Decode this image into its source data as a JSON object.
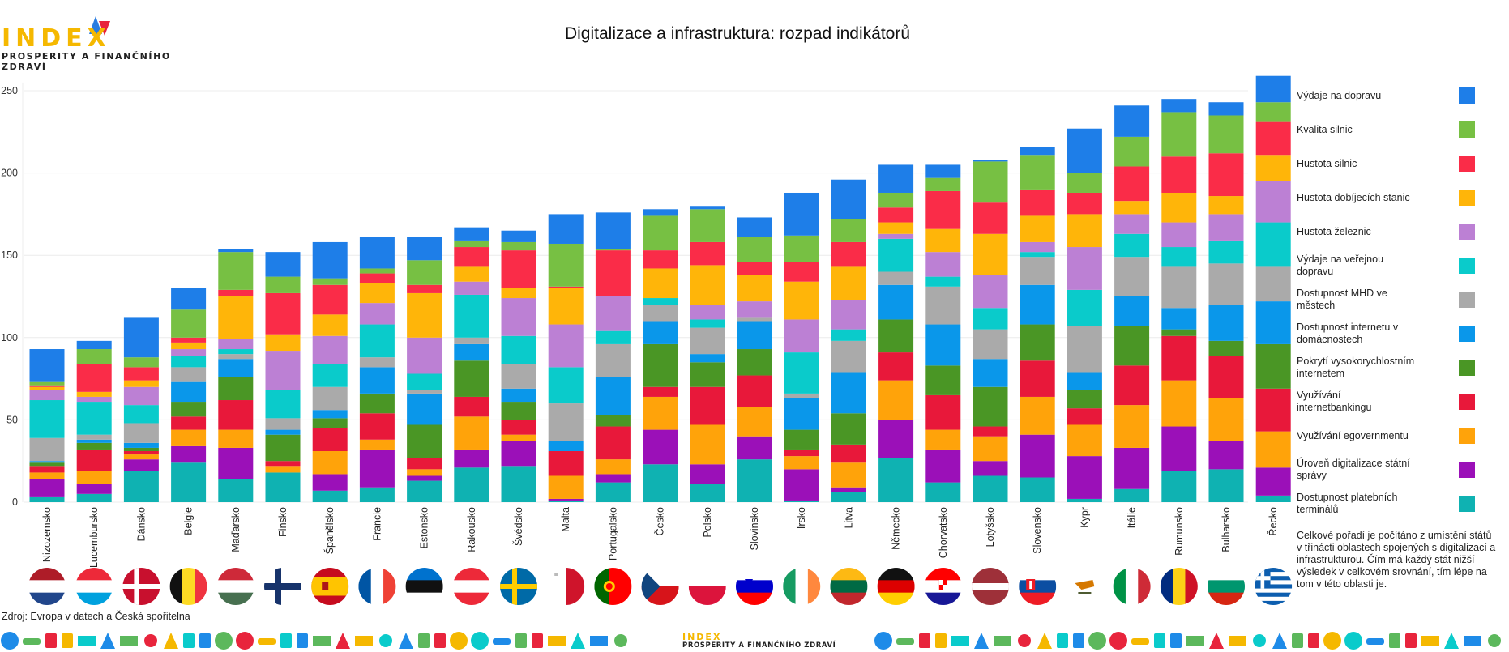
{
  "brand": {
    "logo_word": "INDEX",
    "logo_subtitle": "PROSPERITY A FINANČNÍHO ZDRAVÍ",
    "colors": {
      "yellow": "#f5b800",
      "red": "#e8243c",
      "blue": "#2a7de1"
    }
  },
  "chart_data": {
    "type": "bar",
    "stacked": true,
    "title": "Digitalizace a infrastruktura: rozpad indikátorů",
    "ylim": [
      0,
      260
    ],
    "yticks": [
      "0",
      "50",
      "100",
      "150",
      "200",
      "250"
    ],
    "grid": true,
    "legend_position": "right",
    "categories": [
      "Nizozemsko",
      "Lucembursko",
      "Dánsko",
      "Belgie",
      "Maďarsko",
      "Finsko",
      "Španělsko",
      "Francie",
      "Estonsko",
      "Rakousko",
      "Švédsko",
      "Malta",
      "Portugalsko",
      "Česko",
      "Polsko",
      "Slovinsko",
      "Irsko",
      "Litva",
      "Německo",
      "Chorvatsko",
      "Lotyšsko",
      "Slovensko",
      "Kypr",
      "Itálie",
      "Rumunsko",
      "Bulharsko",
      "Řecko"
    ],
    "series": [
      {
        "name": "Dostupnost platebních terminálů",
        "color": "#0fb2b2",
        "values": [
          3,
          5,
          19,
          24,
          14,
          18,
          7,
          9,
          13,
          21,
          22,
          1,
          12,
          23,
          11,
          26,
          1,
          6,
          27,
          12,
          16,
          15,
          2,
          8,
          19,
          20,
          4
        ]
      },
      {
        "name": "Úroveň digitalizace státní správy",
        "color": "#9b10b8",
        "values": [
          11,
          6,
          7,
          10,
          19,
          0,
          10,
          23,
          3,
          11,
          15,
          1,
          5,
          21,
          12,
          14,
          19,
          3,
          23,
          20,
          9,
          26,
          26,
          25,
          27,
          17,
          17
        ]
      },
      {
        "name": "Využívání egovernmentu",
        "color": "#ffa30a",
        "values": [
          4,
          8,
          3,
          10,
          11,
          4,
          14,
          6,
          4,
          20,
          4,
          14,
          9,
          20,
          24,
          18,
          8,
          15,
          24,
          12,
          15,
          23,
          19,
          26,
          28,
          26,
          22
        ]
      },
      {
        "name": "Využívání internetbankingu",
        "color": "#e8183a",
        "values": [
          4,
          13,
          2,
          8,
          18,
          3,
          14,
          16,
          7,
          12,
          9,
          15,
          20,
          6,
          23,
          19,
          4,
          11,
          17,
          21,
          6,
          22,
          10,
          24,
          27,
          26,
          26
        ]
      },
      {
        "name": "Pokrytí vysokorychlostním internetem",
        "color": "#4a9625",
        "values": [
          2,
          4,
          2,
          9,
          14,
          16,
          6,
          12,
          20,
          22,
          11,
          0,
          7,
          26,
          15,
          16,
          12,
          19,
          20,
          18,
          24,
          22,
          11,
          24,
          4,
          9,
          27
        ]
      },
      {
        "name": "Dostupnost internetu v domácnostech",
        "color": "#0a97ea",
        "values": [
          1,
          2,
          3,
          12,
          11,
          3,
          5,
          16,
          19,
          10,
          8,
          6,
          23,
          14,
          5,
          17,
          19,
          25,
          21,
          25,
          17,
          24,
          11,
          18,
          13,
          22,
          26
        ]
      },
      {
        "name": "Dostupnost MHD ve městech",
        "color": "#aaaaaa",
        "values": [
          14,
          3,
          12,
          9,
          3,
          7,
          14,
          6,
          2,
          4,
          15,
          23,
          20,
          10,
          16,
          2,
          3,
          19,
          8,
          23,
          18,
          17,
          28,
          24,
          25,
          25,
          21
        ]
      },
      {
        "name": "Výdaje na veřejnou dopravu",
        "color": "#0acbcb",
        "values": [
          23,
          20,
          11,
          7,
          3,
          17,
          14,
          20,
          10,
          26,
          17,
          22,
          8,
          4,
          5,
          0,
          25,
          7,
          20,
          6,
          13,
          3,
          22,
          14,
          12,
          14,
          27
        ]
      },
      {
        "name": "Hustota železnic",
        "color": "#bc80d4",
        "values": [
          6,
          3,
          11,
          4,
          6,
          24,
          17,
          13,
          22,
          8,
          23,
          26,
          21,
          0,
          9,
          10,
          20,
          18,
          3,
          15,
          20,
          6,
          26,
          12,
          15,
          16,
          25
        ]
      },
      {
        "name": "Hustota dobíjecích stanic",
        "color": "#ffb509",
        "values": [
          2,
          3,
          4,
          4,
          26,
          10,
          13,
          12,
          27,
          9,
          6,
          22,
          0,
          18,
          24,
          16,
          23,
          20,
          7,
          14,
          25,
          16,
          20,
          8,
          18,
          11,
          16
        ]
      },
      {
        "name": "Hustota silnic",
        "color": "#fa2c48",
        "values": [
          1,
          17,
          8,
          3,
          4,
          25,
          18,
          6,
          5,
          12,
          23,
          1,
          28,
          11,
          14,
          8,
          12,
          15,
          9,
          23,
          19,
          16,
          13,
          21,
          22,
          26,
          20
        ]
      },
      {
        "name": "Kvalita silnic",
        "color": "#77c043",
        "values": [
          2,
          9,
          6,
          17,
          23,
          10,
          4,
          3,
          15,
          4,
          5,
          26,
          1,
          21,
          20,
          15,
          16,
          14,
          9,
          8,
          25,
          21,
          12,
          18,
          27,
          23,
          12
        ]
      },
      {
        "name": "Výdaje na dopravu",
        "color": "#1e7ee8",
        "values": [
          20,
          5,
          24,
          13,
          2,
          15,
          22,
          19,
          14,
          8,
          7,
          18,
          22,
          4,
          2,
          12,
          26,
          24,
          17,
          8,
          1,
          5,
          27,
          19,
          8,
          8,
          16
        ]
      }
    ],
    "legend_order": [
      "Výdaje na dopravu",
      "Kvalita silnic",
      "Hustota silnic",
      "Hustota dobíjecích stanic",
      "Hustota železnic",
      "Výdaje na veřejnou dopravu",
      "Dostupnost MHD ve městech",
      "Dostupnost internetu v domácnostech",
      "Pokrytí vysokorychlostním internetem",
      "Využívání internetbankingu",
      "Využívání egovernmentu",
      "Úroveň digitalizace státní správy",
      "Dostupnost platebních terminálů"
    ],
    "flag_icons": [
      "netherlands-flag",
      "luxembourg-flag",
      "denmark-flag",
      "belgium-flag",
      "hungary-flag",
      "finland-flag",
      "spain-flag",
      "france-flag",
      "estonia-flag",
      "austria-flag",
      "sweden-flag",
      "malta-flag",
      "portugal-flag",
      "czechia-flag",
      "poland-flag",
      "slovenia-flag",
      "ireland-flag",
      "lithuania-flag",
      "germany-flag",
      "croatia-flag",
      "latvia-flag",
      "slovakia-flag",
      "cyprus-flag",
      "italy-flag",
      "romania-flag",
      "bulgaria-flag",
      "greece-flag"
    ]
  },
  "note": "Celkové pořadí je počítáno z umístění států v třinácti oblastech spojených s digitalizací a infrastrukturou. Čím má každý stát nižší výsledek v celkovém srovnání, tím lépe na tom v této oblasti je.",
  "source": "Zdroj: Evropa v datech a Česká spořitelna",
  "footer": {
    "logo_word": "INDEX",
    "logo_subtitle": "PROSPERITY A FINANČNÍHO ZDRAVÍ"
  }
}
